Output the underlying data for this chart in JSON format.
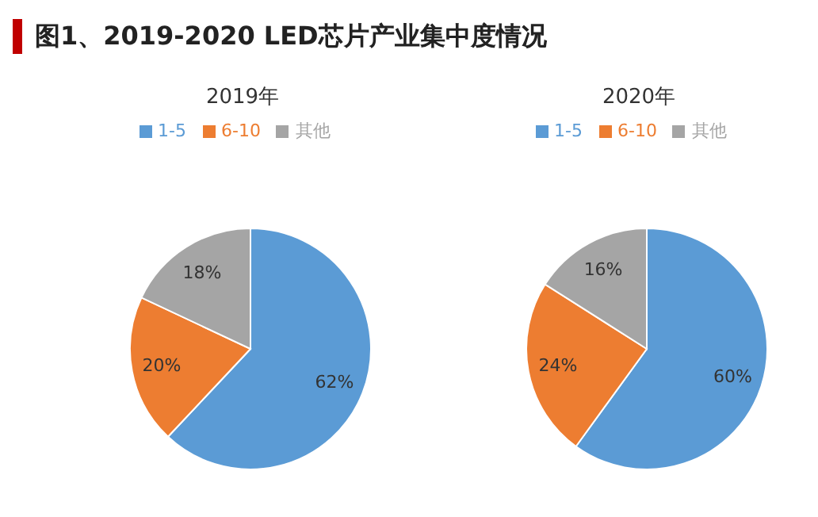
{
  "chart_data": [
    {
      "type": "pie",
      "annotations": [
        "图1、2019-2020 LED芯片产业集中度情况"
      ],
      "title": "2019年",
      "categories": [
        "1-5",
        "6-10",
        "其他"
      ],
      "values": [
        62,
        20,
        18
      ],
      "colors": [
        "#5b9bd5",
        "#ed7d31",
        "#a5a5a5"
      ],
      "value_labels": [
        "62%",
        "20%",
        "18%"
      ],
      "legend": "top"
    },
    {
      "type": "pie",
      "title": "2020年",
      "categories": [
        "1-5",
        "6-10",
        "其他"
      ],
      "values": [
        60,
        24,
        16
      ],
      "colors": [
        "#5b9bd5",
        "#ed7d31",
        "#a5a5a5"
      ],
      "value_labels": [
        "60%",
        "24%",
        "16%"
      ],
      "legend": "top"
    }
  ]
}
